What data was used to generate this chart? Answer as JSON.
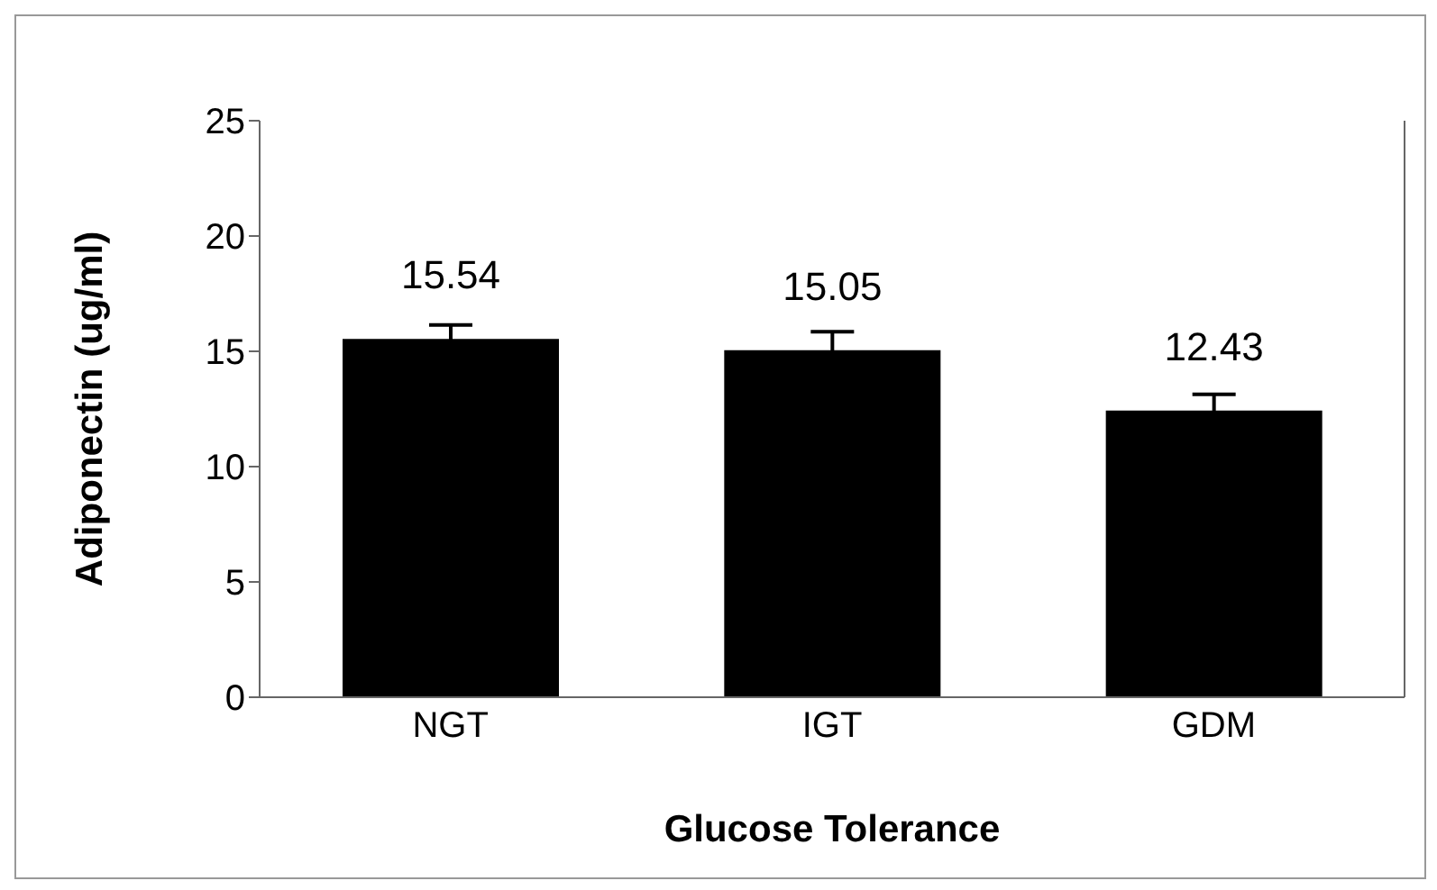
{
  "chart_data": {
    "type": "bar",
    "xlabel": "Glucose Tolerance",
    "ylabel": "Adiponectin (ug/ml)",
    "categories": [
      "NGT",
      "IGT",
      "GDM"
    ],
    "values": [
      15.54,
      15.05,
      12.43
    ],
    "errors": [
      0.6,
      0.8,
      0.7
    ],
    "color": "#000000",
    "ylim": [
      0,
      25
    ],
    "yticks": [
      0,
      5,
      10,
      15,
      20,
      25
    ],
    "grid": false,
    "data_labels": true
  }
}
